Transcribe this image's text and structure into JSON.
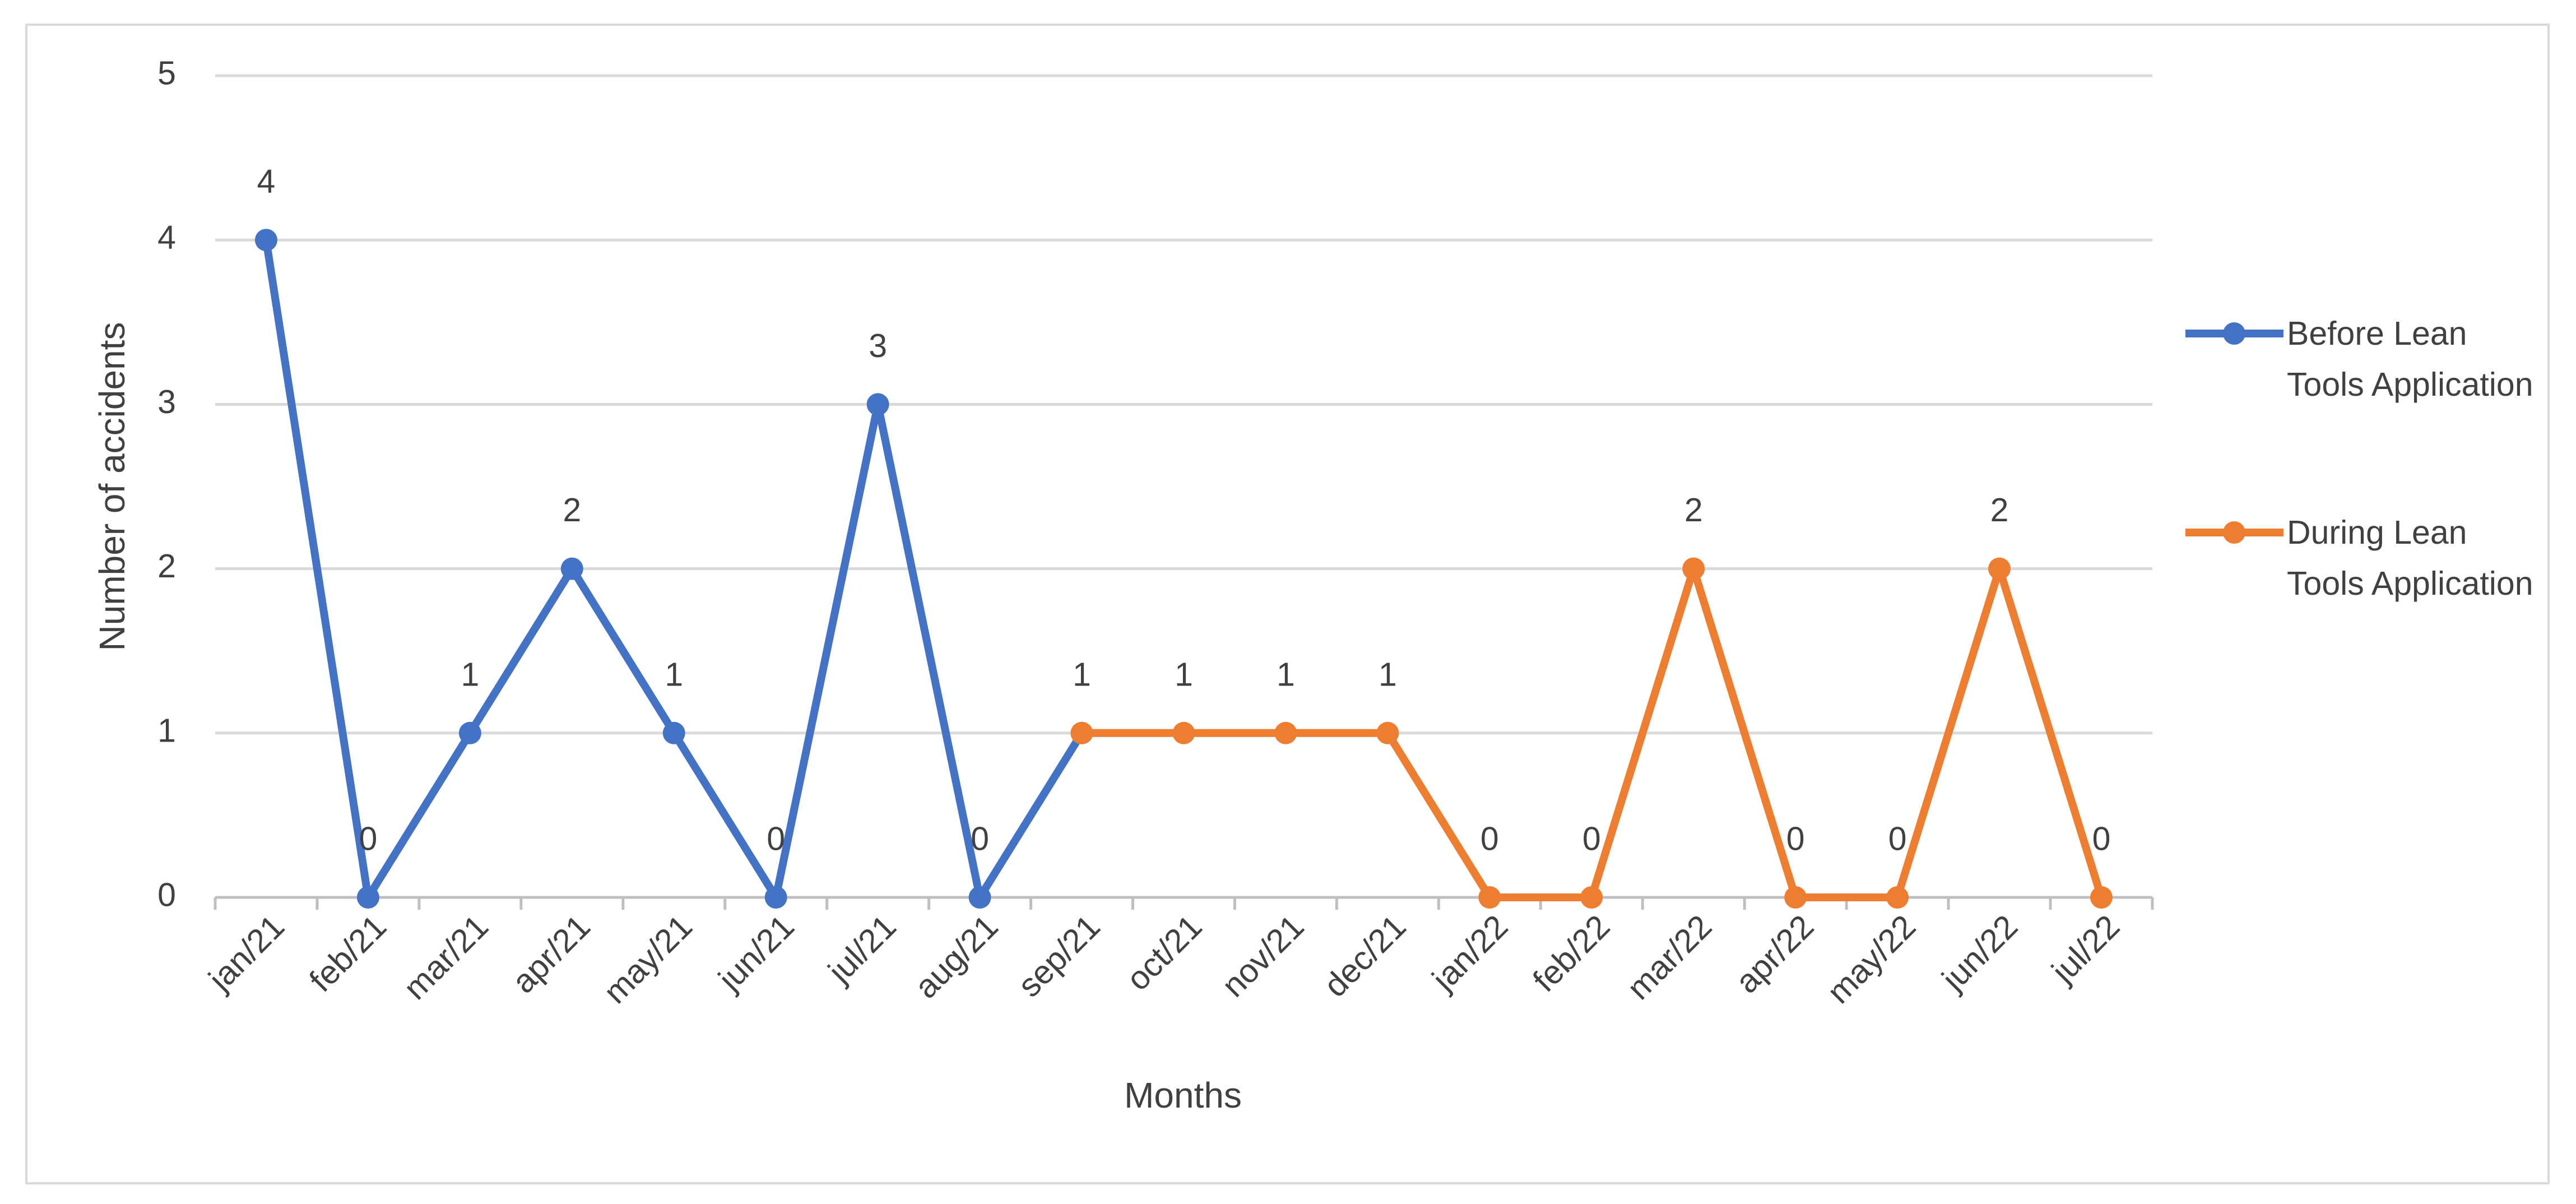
{
  "chart_data": {
    "type": "line",
    "x_label": "Months",
    "y_label": "Number of accidents",
    "categories": [
      "jan/21",
      "feb/21",
      "mar/21",
      "apr/21",
      "may/21",
      "jun/21",
      "jul/21",
      "aug/21",
      "sep/21",
      "oct/21",
      "nov/21",
      "dec/21",
      "jan/22",
      "feb/22",
      "mar/22",
      "apr/22",
      "may/22",
      "jun/22",
      "jul/22"
    ],
    "series": [
      {
        "name": "Before Lean Tools Application",
        "color": "#4472c4",
        "values": [
          4,
          0,
          1,
          2,
          1,
          0,
          3,
          0,
          1,
          null,
          null,
          null,
          null,
          null,
          null,
          null,
          null,
          null,
          null
        ]
      },
      {
        "name": "During Lean Tools Application",
        "color": "#ed7d31",
        "values": [
          null,
          null,
          null,
          null,
          null,
          null,
          null,
          null,
          1,
          1,
          1,
          1,
          0,
          0,
          2,
          0,
          0,
          2,
          0
        ]
      }
    ],
    "ylim": [
      0,
      5
    ],
    "yticks": [
      0,
      1,
      2,
      3,
      4,
      5
    ],
    "grid": true,
    "legend": "right",
    "data_labels": true
  }
}
